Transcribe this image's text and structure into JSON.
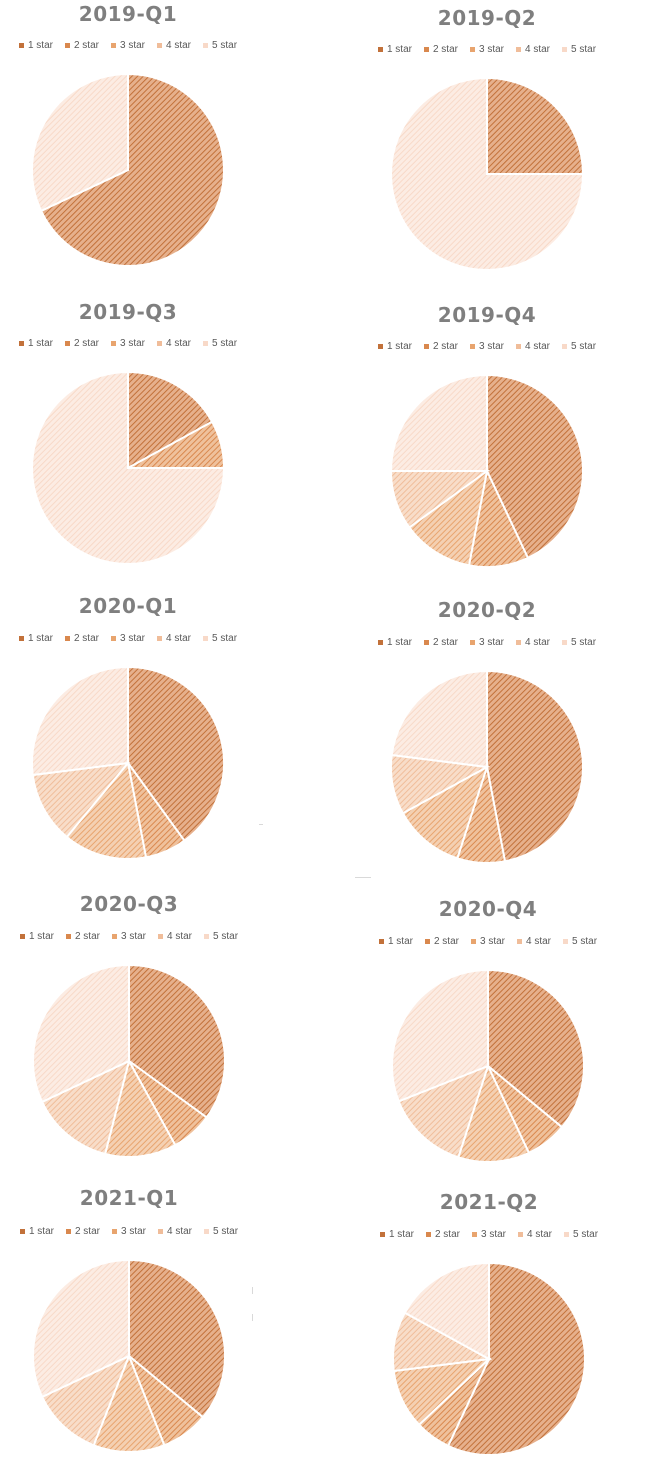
{
  "colors": {
    "title": "#7f7f7f",
    "slices": [
      "#c2713a",
      "#d9884e",
      "#e8a46e",
      "#f0bd9a",
      "#f8d9c8"
    ],
    "slice_fill_tint": [
      "#e6b08c",
      "#efc19c",
      "#f4d0b2",
      "#f8ddc9",
      "#fcece3"
    ]
  },
  "chart_data": [
    {
      "type": "pie",
      "title": "2019-Q1",
      "categories": [
        "1 star",
        "2 star",
        "3 star",
        "4 star",
        "5 star"
      ],
      "values": [
        68,
        0,
        0,
        0,
        32
      ]
    },
    {
      "type": "pie",
      "title": "2019-Q2",
      "categories": [
        "1 star",
        "2 star",
        "3 star",
        "4 star",
        "5 star"
      ],
      "values": [
        25,
        0,
        0,
        0,
        75
      ]
    },
    {
      "type": "pie",
      "title": "2019-Q3",
      "categories": [
        "1 star",
        "2 star",
        "3 star",
        "4 star",
        "5 star"
      ],
      "values": [
        17,
        8,
        0,
        0,
        75
      ]
    },
    {
      "type": "pie",
      "title": "2019-Q4",
      "categories": [
        "1 star",
        "2 star",
        "3 star",
        "4 star",
        "5 star"
      ],
      "values": [
        43,
        10,
        12,
        10,
        25
      ]
    },
    {
      "type": "pie",
      "title": "2020-Q1",
      "categories": [
        "1 star",
        "2 star",
        "3 star",
        "4 star",
        "5 star"
      ],
      "values": [
        40,
        7,
        14,
        12,
        27
      ]
    },
    {
      "type": "pie",
      "title": "2020-Q2",
      "categories": [
        "1 star",
        "2 star",
        "3 star",
        "4 star",
        "5 star"
      ],
      "values": [
        47,
        8,
        12,
        10,
        23
      ]
    },
    {
      "type": "pie",
      "title": "2020-Q3",
      "categories": [
        "1 star",
        "2 star",
        "3 star",
        "4 star",
        "5 star"
      ],
      "values": [
        35,
        7,
        12,
        14,
        32
      ]
    },
    {
      "type": "pie",
      "title": "2020-Q4",
      "categories": [
        "1 star",
        "2 star",
        "3 star",
        "4 star",
        "5 star"
      ],
      "values": [
        36,
        7,
        12,
        14,
        31
      ]
    },
    {
      "type": "pie",
      "title": "2021-Q1",
      "categories": [
        "1 star",
        "2 star",
        "3 star",
        "4 star",
        "5 star"
      ],
      "values": [
        36,
        8,
        12,
        12,
        32
      ]
    },
    {
      "type": "pie",
      "title": "2021-Q2",
      "categories": [
        "1 star",
        "2 star",
        "3 star",
        "4 star",
        "5 star"
      ],
      "values": [
        57,
        6,
        10,
        10,
        17
      ]
    }
  ]
}
